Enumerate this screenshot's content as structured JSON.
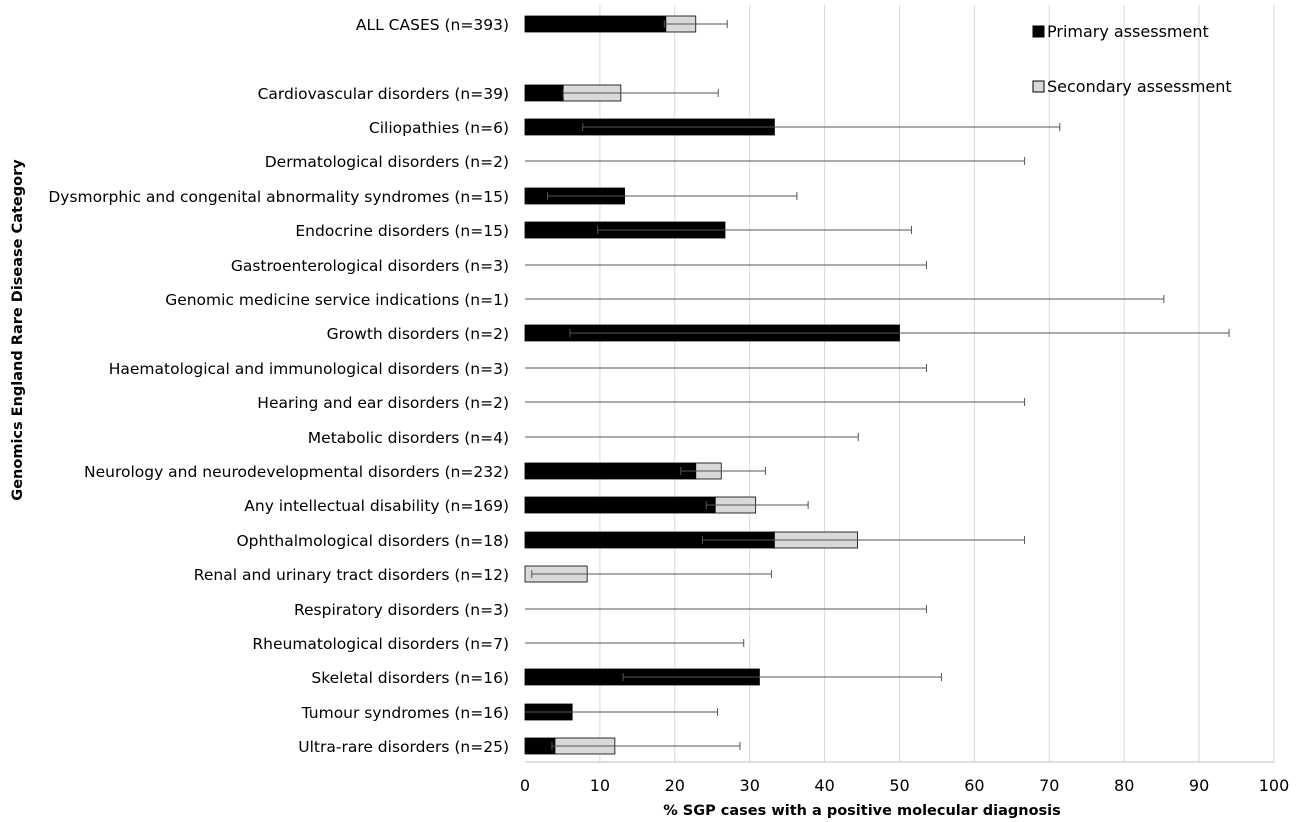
{
  "chart_data": {
    "type": "bar",
    "orientation": "horizontal",
    "stacked": true,
    "xlabel": "% SGP cases with a positive molecular diagnosis",
    "ylabel": "Genomics England Rare Disease Category",
    "xlim": [
      0,
      100
    ],
    "xticks": [
      0,
      10,
      20,
      30,
      40,
      50,
      60,
      70,
      80,
      90,
      100
    ],
    "grid": "vertical",
    "legend_position": "top-right",
    "colors": {
      "primary": "#000000",
      "secondary": "#d9d9d9",
      "error": "#555555",
      "grid": "#d9d9d9"
    },
    "series": [
      {
        "name": "Primary assessment"
      },
      {
        "name": "Secondary assessment"
      }
    ],
    "categories": [
      {
        "label": "ALL CASES (n=393)",
        "primary": 18.8,
        "secondary": 4.0,
        "err_low": 18.6,
        "err_high": 27.0
      },
      {
        "label": "Cardiovascular disorders (n=39)",
        "primary": 5.1,
        "secondary": 7.7,
        "err_low": 5.1,
        "err_high": 25.8
      },
      {
        "label": "Ciliopathies (n=6)",
        "primary": 33.3,
        "secondary": 0,
        "err_low": 7.7,
        "err_high": 71.4
      },
      {
        "label": "Dermatological disorders (n=2)",
        "primary": 0,
        "secondary": 0,
        "err_low": 0,
        "err_high": 66.7
      },
      {
        "label": "Dysmorphic and congenital abnormality syndromes (n=15)",
        "primary": 13.3,
        "secondary": 0,
        "err_low": 3.0,
        "err_high": 36.3
      },
      {
        "label": "Endocrine disorders (n=15)",
        "primary": 26.7,
        "secondary": 0,
        "err_low": 9.7,
        "err_high": 51.6
      },
      {
        "label": "Gastroenterological disorders (n=3)",
        "primary": 0,
        "secondary": 0,
        "err_low": 0,
        "err_high": 53.6
      },
      {
        "label": "Genomic medicine service indications (n=1)",
        "primary": 0,
        "secondary": 0,
        "err_low": 0,
        "err_high": 85.3
      },
      {
        "label": "Growth disorders (n=2)",
        "primary": 50.0,
        "secondary": 0,
        "err_low": 6.0,
        "err_high": 94.0
      },
      {
        "label": "Haematological and immunological disorders (n=3)",
        "primary": 0,
        "secondary": 0,
        "err_low": 0,
        "err_high": 53.6
      },
      {
        "label": "Hearing and ear disorders (n=2)",
        "primary": 0,
        "secondary": 0,
        "err_low": 0,
        "err_high": 66.7
      },
      {
        "label": "Metabolic disorders (n=4)",
        "primary": 0,
        "secondary": 0,
        "err_low": 0,
        "err_high": 44.5
      },
      {
        "label": "Neurology and neurodevelopmental disorders (n=232)",
        "primary": 22.8,
        "secondary": 3.4,
        "err_low": 20.8,
        "err_high": 32.1
      },
      {
        "label": "Any intellectual disability (n=169)",
        "primary": 25.4,
        "secondary": 5.4,
        "err_low": 24.2,
        "err_high": 37.8
      },
      {
        "label": "Ophthalmological disorders (n=18)",
        "primary": 33.3,
        "secondary": 11.1,
        "err_low": 23.7,
        "err_high": 66.7
      },
      {
        "label": "Renal and urinary tract disorders (n=12)",
        "primary": 0,
        "secondary": 8.3,
        "err_low": 0.9,
        "err_high": 32.9
      },
      {
        "label": "Respiratory disorders (n=3)",
        "primary": 0,
        "secondary": 0,
        "err_low": 0,
        "err_high": 53.6
      },
      {
        "label": "Rheumatological disorders (n=7)",
        "primary": 0,
        "secondary": 0,
        "err_low": 0,
        "err_high": 29.2
      },
      {
        "label": "Skeletal disorders (n=16)",
        "primary": 31.3,
        "secondary": 0,
        "err_low": 13.1,
        "err_high": 55.6
      },
      {
        "label": "Tumour syndromes (n=16)",
        "primary": 6.3,
        "secondary": 0,
        "err_low": 0,
        "err_high": 25.7
      },
      {
        "label": "Ultra-rare disorders (n=25)",
        "primary": 4.0,
        "secondary": 8.0,
        "err_low": 3.6,
        "err_high": 28.7
      }
    ]
  }
}
